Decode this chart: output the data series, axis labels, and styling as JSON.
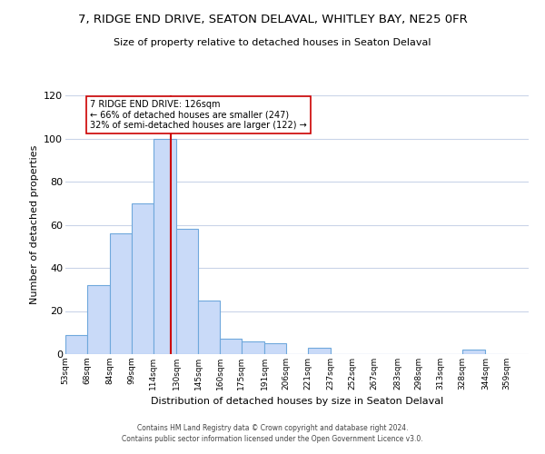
{
  "title": "7, RIDGE END DRIVE, SEATON DELAVAL, WHITLEY BAY, NE25 0FR",
  "subtitle": "Size of property relative to detached houses in Seaton Delaval",
  "xlabel": "Distribution of detached houses by size in Seaton Delaval",
  "ylabel": "Number of detached properties",
  "bar_left_edges": [
    53,
    68,
    84,
    99,
    114,
    130,
    145,
    160,
    175,
    191,
    206,
    221,
    237,
    252,
    267,
    283,
    298,
    313,
    328,
    344
  ],
  "bar_heights": [
    9,
    32,
    56,
    70,
    100,
    58,
    25,
    7,
    6,
    5,
    0,
    3,
    0,
    0,
    0,
    0,
    0,
    0,
    2,
    0
  ],
  "bar_widths": [
    15,
    16,
    15,
    15,
    16,
    15,
    15,
    15,
    16,
    15,
    15,
    16,
    15,
    15,
    16,
    15,
    15,
    15,
    16,
    15
  ],
  "bar_color": "#c9daf8",
  "bar_edge_color": "#6fa8dc",
  "marker_x": 126,
  "marker_color": "#cc0000",
  "ylim": [
    0,
    120
  ],
  "yticks": [
    0,
    20,
    40,
    60,
    80,
    100,
    120
  ],
  "x_tick_labels": [
    "53sqm",
    "68sqm",
    "84sqm",
    "99sqm",
    "114sqm",
    "130sqm",
    "145sqm",
    "160sqm",
    "175sqm",
    "191sqm",
    "206sqm",
    "221sqm",
    "237sqm",
    "252sqm",
    "267sqm",
    "283sqm",
    "298sqm",
    "313sqm",
    "328sqm",
    "344sqm",
    "359sqm"
  ],
  "x_tick_positions": [
    53,
    68,
    84,
    99,
    114,
    130,
    145,
    160,
    175,
    191,
    206,
    221,
    237,
    252,
    267,
    283,
    298,
    313,
    328,
    344,
    359
  ],
  "annotation_title": "7 RIDGE END DRIVE: 126sqm",
  "annotation_line1": "← 66% of detached houses are smaller (247)",
  "annotation_line2": "32% of semi-detached houses are larger (122) →",
  "footer1": "Contains HM Land Registry data © Crown copyright and database right 2024.",
  "footer2": "Contains public sector information licensed under the Open Government Licence v3.0.",
  "background_color": "#ffffff",
  "grid_color": "#c9d4e8"
}
